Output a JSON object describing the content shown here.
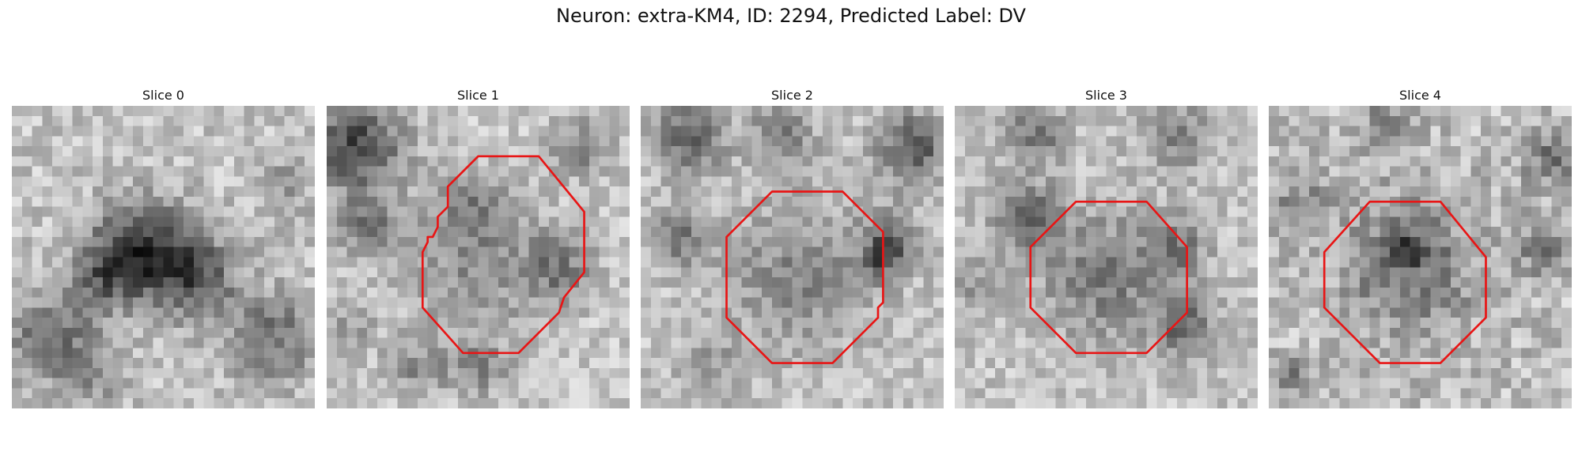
{
  "figure": {
    "title": "Neuron: extra-KM4, ID: 2294, Predicted Label: DV"
  },
  "panels": [
    {
      "title": "Slice 0",
      "has_outline": false,
      "outline": []
    },
    {
      "title": "Slice 1",
      "has_outline": true,
      "outline": [
        [
          15,
          5
        ],
        [
          21,
          5
        ],
        [
          25.5,
          10.5
        ],
        [
          25.5,
          16.5
        ],
        [
          23.5,
          19
        ],
        [
          23,
          20.5
        ],
        [
          19,
          24.5
        ],
        [
          13.5,
          24.5
        ],
        [
          9.5,
          20
        ],
        [
          9.5,
          14.5
        ],
        [
          10,
          13.5
        ],
        [
          10,
          13
        ],
        [
          10.5,
          13
        ],
        [
          11,
          12
        ],
        [
          11,
          11
        ],
        [
          12,
          10
        ],
        [
          12,
          8
        ]
      ]
    },
    {
      "title": "Slice 2",
      "has_outline": true,
      "outline": [
        [
          13,
          8.5
        ],
        [
          20,
          8.5
        ],
        [
          24,
          12.5
        ],
        [
          24,
          19.5
        ],
        [
          23.5,
          20
        ],
        [
          23.5,
          21
        ],
        [
          19,
          25.5
        ],
        [
          13,
          25.5
        ],
        [
          8.5,
          21
        ],
        [
          8.5,
          13
        ]
      ]
    },
    {
      "title": "Slice 3",
      "has_outline": true,
      "outline": [
        [
          12,
          9.5
        ],
        [
          19,
          9.5
        ],
        [
          23,
          14
        ],
        [
          23,
          20.5
        ],
        [
          19,
          24.5
        ],
        [
          12,
          24.5
        ],
        [
          7.5,
          20
        ],
        [
          7.5,
          14
        ]
      ]
    },
    {
      "title": "Slice 4",
      "has_outline": true,
      "outline": [
        [
          10,
          9.5
        ],
        [
          17,
          9.5
        ],
        [
          21.5,
          15
        ],
        [
          21.5,
          21
        ],
        [
          17,
          25.5
        ],
        [
          11,
          25.5
        ],
        [
          5.5,
          20
        ],
        [
          5.5,
          14.5
        ]
      ]
    }
  ]
}
